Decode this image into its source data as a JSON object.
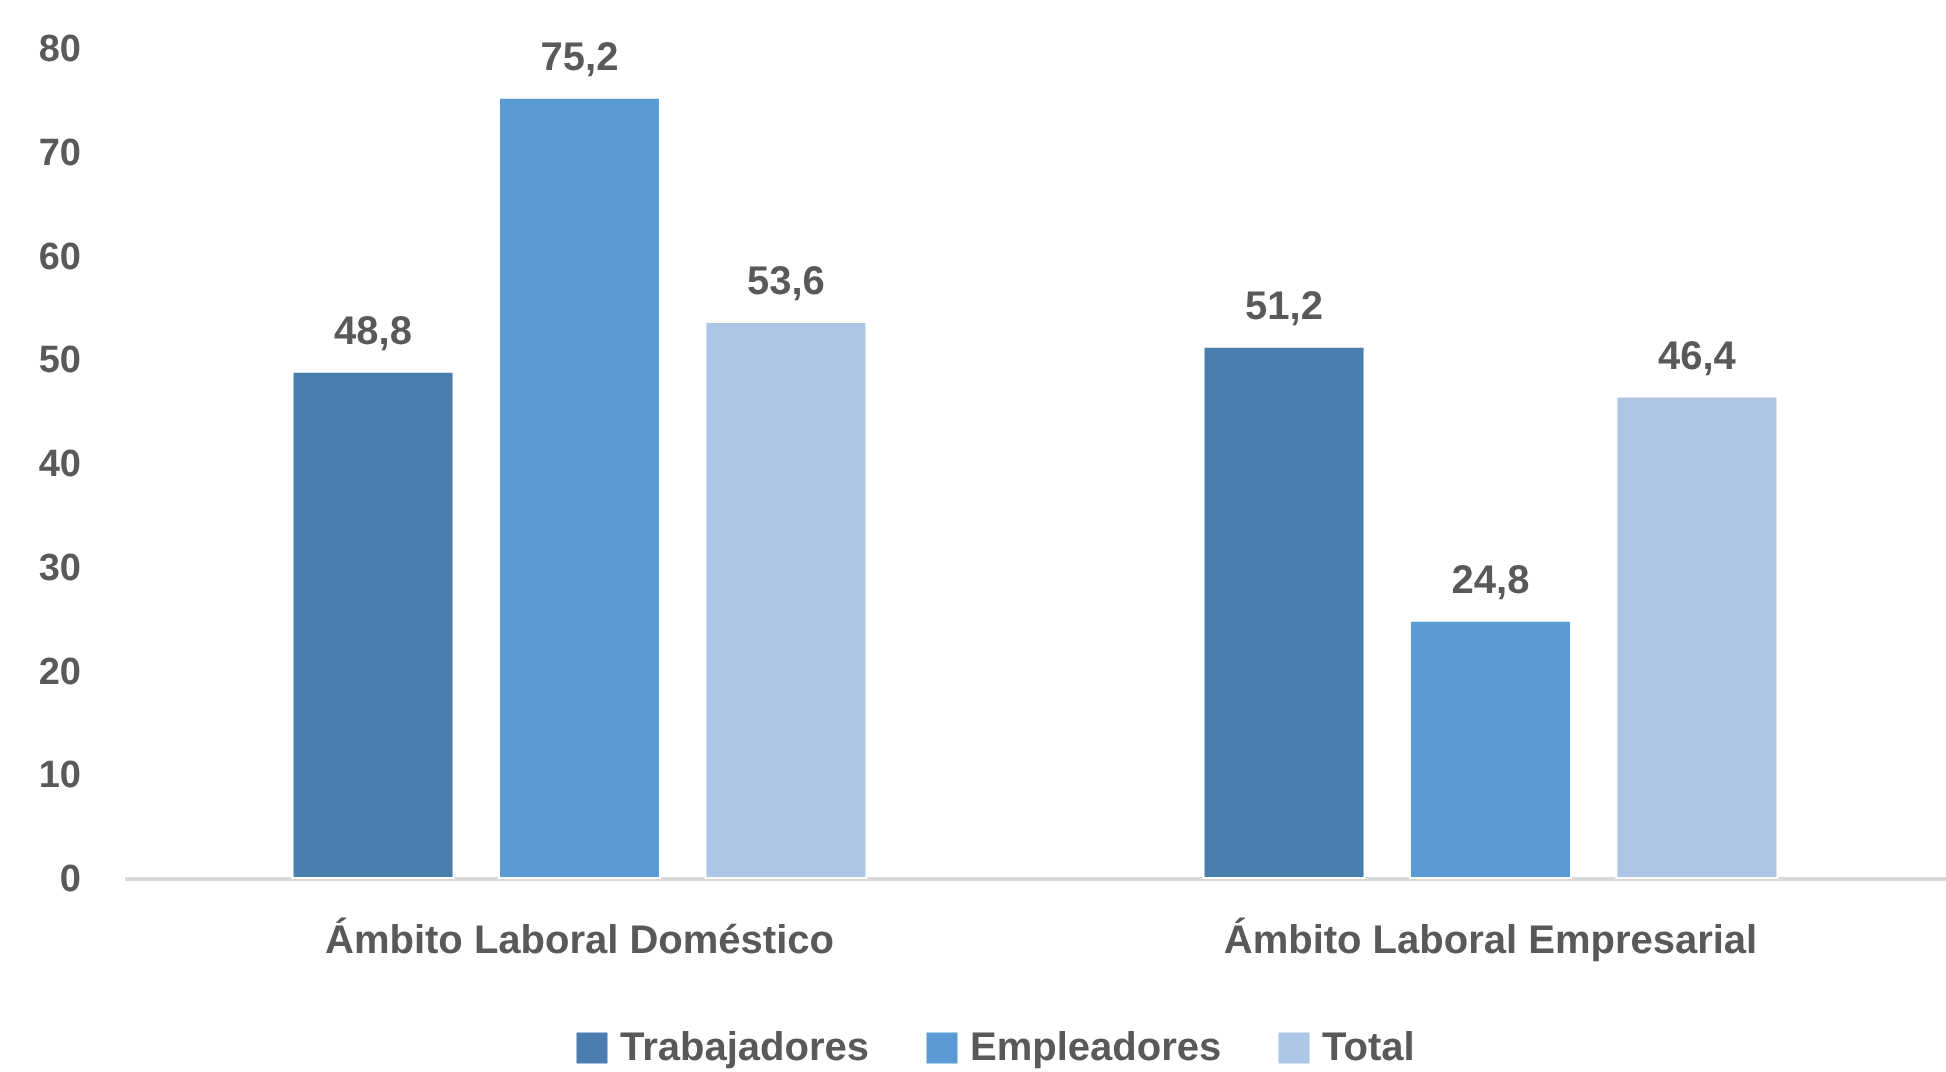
{
  "chart_data": {
    "type": "bar",
    "categories": [
      "Ámbito Laboral Doméstico",
      "Ámbito Laboral Empresarial"
    ],
    "series": [
      {
        "name": "Trabajadores",
        "color": "#4a7eae",
        "values": [
          48.8,
          51.2
        ],
        "value_labels": [
          "48,8",
          "51,2"
        ]
      },
      {
        "name": "Empleadores",
        "color": "#5b9bd5",
        "values": [
          75.2,
          24.8
        ],
        "value_labels": [
          "75,2",
          "24,8"
        ]
      },
      {
        "name": "Total",
        "color": "#adc6e5",
        "values": [
          53.6,
          46.4
        ],
        "value_labels": [
          "53,6",
          "46,4"
        ]
      }
    ],
    "ylim": [
      0,
      80
    ],
    "yticks": [
      0,
      10,
      20,
      30,
      40,
      50,
      60,
      70,
      80
    ],
    "grid": false,
    "legend": "bottom"
  }
}
